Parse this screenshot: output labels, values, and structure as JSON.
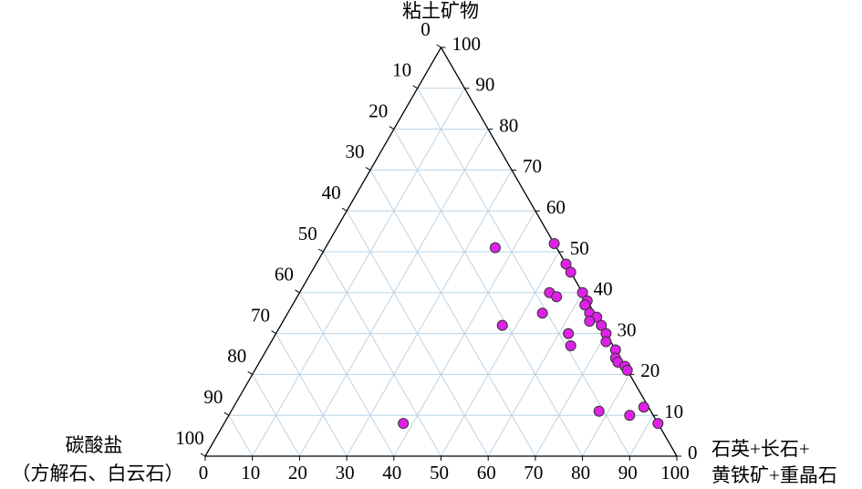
{
  "chart_data": {
    "type": "ternary",
    "top_label": "粘土矿物",
    "right_label": [
      "石英+长石+",
      "黄铁矿+重晶石"
    ],
    "left_label": [
      "碳酸盐",
      "（方解石、白云石）"
    ],
    "ticks": [
      0,
      10,
      20,
      30,
      40,
      50,
      60,
      70,
      80,
      90,
      100
    ],
    "grid": true,
    "color": "#e020e8",
    "points": {
      "clay": [
        51,
        52,
        47,
        45,
        40,
        39,
        40,
        38,
        37,
        35,
        34,
        33,
        32,
        35,
        32,
        30,
        27,
        30,
        28,
        26,
        24,
        23,
        22,
        21,
        11,
        12,
        10,
        8,
        8
      ],
      "quartz": [
        36,
        48,
        53,
        55,
        53,
        55,
        60,
        62,
        62,
        64,
        66,
        65,
        68,
        54,
        47,
        62,
        64,
        70,
        71,
        74,
        75,
        76,
        78,
        79,
        78,
        87,
        85,
        92,
        38
      ],
      "carbonate": [
        13,
        0,
        0,
        0,
        7,
        6,
        0,
        0,
        1,
        1,
        0,
        2,
        0,
        11,
        21,
        8,
        9,
        0,
        1,
        0,
        1,
        1,
        0,
        0,
        11,
        1,
        5,
        0,
        54
      ]
    }
  }
}
